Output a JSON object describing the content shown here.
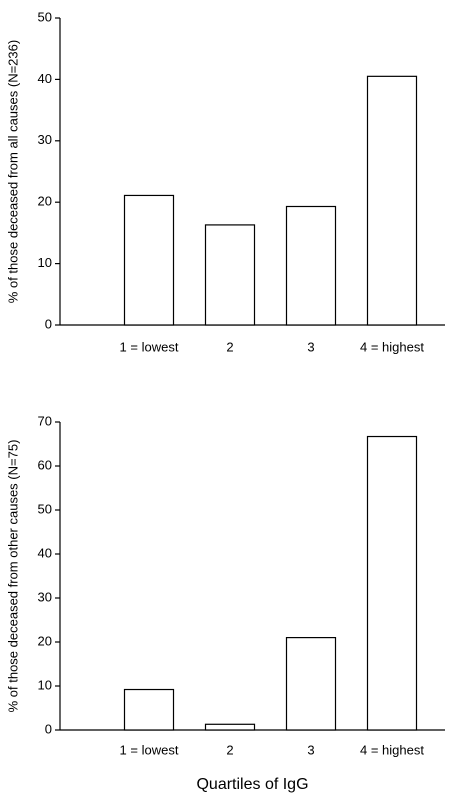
{
  "chart_data": [
    {
      "type": "bar",
      "ylabel": "% of those deceased from all causes (N=236)",
      "categories": [
        "1 = lowest",
        "2",
        "3",
        "4 = highest"
      ],
      "values": [
        21.1,
        16.3,
        19.3,
        40.5
      ],
      "color": "#ffffff",
      "ylim": [
        0,
        50
      ],
      "yticks": [
        0,
        10,
        20,
        30,
        40,
        50
      ]
    },
    {
      "type": "bar",
      "ylabel": "% of those deceased from other causes (N=75)",
      "xlabel": "Quartiles of IgG",
      "categories": [
        "1 = lowest",
        "2",
        "3",
        "4 = highest"
      ],
      "values": [
        9.2,
        1.3,
        21,
        66.7
      ],
      "color": "#ffffff",
      "ylim": [
        0,
        70
      ],
      "yticks": [
        0,
        10,
        20,
        30,
        40,
        50,
        60,
        70
      ]
    }
  ]
}
